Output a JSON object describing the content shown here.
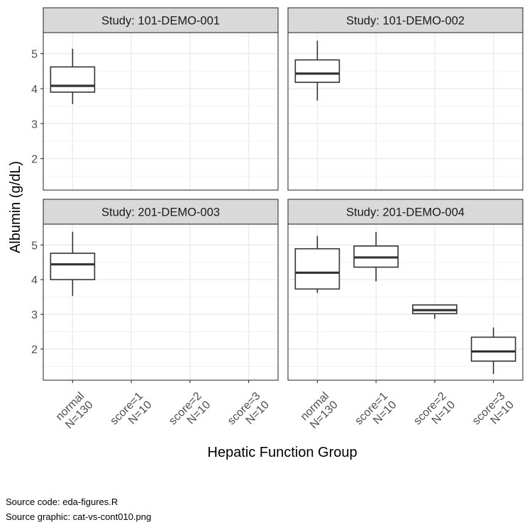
{
  "chart_data": {
    "type": "box",
    "xlabel": "Hepatic Function Group",
    "ylabel": "Albumin (g/dL)",
    "ylim": [
      1.1,
      5.6
    ],
    "yticks": [
      2,
      3,
      4,
      5
    ],
    "grid": true,
    "categories": [
      {
        "line1": "normal",
        "line2": "N=130"
      },
      {
        "line1": "score=1",
        "line2": "N=10"
      },
      {
        "line1": "score=2",
        "line2": "N=10"
      },
      {
        "line1": "score=3",
        "line2": "N=10"
      }
    ],
    "panels": [
      {
        "title": "Study: 101-DEMO-001",
        "boxes": [
          {
            "category": 0,
            "min": 3.56,
            "q1": 3.9,
            "median": 4.08,
            "q3": 4.62,
            "max": 5.14
          }
        ]
      },
      {
        "title": "Study: 101-DEMO-002",
        "boxes": [
          {
            "category": 0,
            "min": 3.66,
            "q1": 4.18,
            "median": 4.43,
            "q3": 4.82,
            "max": 5.37
          }
        ]
      },
      {
        "title": "Study: 201-DEMO-003",
        "boxes": [
          {
            "category": 0,
            "min": 3.53,
            "q1": 4.0,
            "median": 4.44,
            "q3": 4.76,
            "max": 5.38
          }
        ]
      },
      {
        "title": "Study: 201-DEMO-004",
        "boxes": [
          {
            "category": 0,
            "min": 3.62,
            "q1": 3.73,
            "median": 4.2,
            "q3": 4.89,
            "max": 5.26
          },
          {
            "category": 1,
            "min": 3.95,
            "q1": 4.36,
            "median": 4.64,
            "q3": 4.97,
            "max": 5.37
          },
          {
            "category": 2,
            "min": 2.87,
            "q1": 3.02,
            "median": 3.12,
            "q3": 3.27,
            "max": 3.29
          },
          {
            "category": 3,
            "min": 1.28,
            "q1": 1.65,
            "median": 1.93,
            "q3": 2.34,
            "max": 2.62
          }
        ]
      }
    ]
  },
  "captions": {
    "source_code": "Source code: eda-figures.R",
    "source_graphic": "Source graphic: cat-vs-cont010.png"
  }
}
